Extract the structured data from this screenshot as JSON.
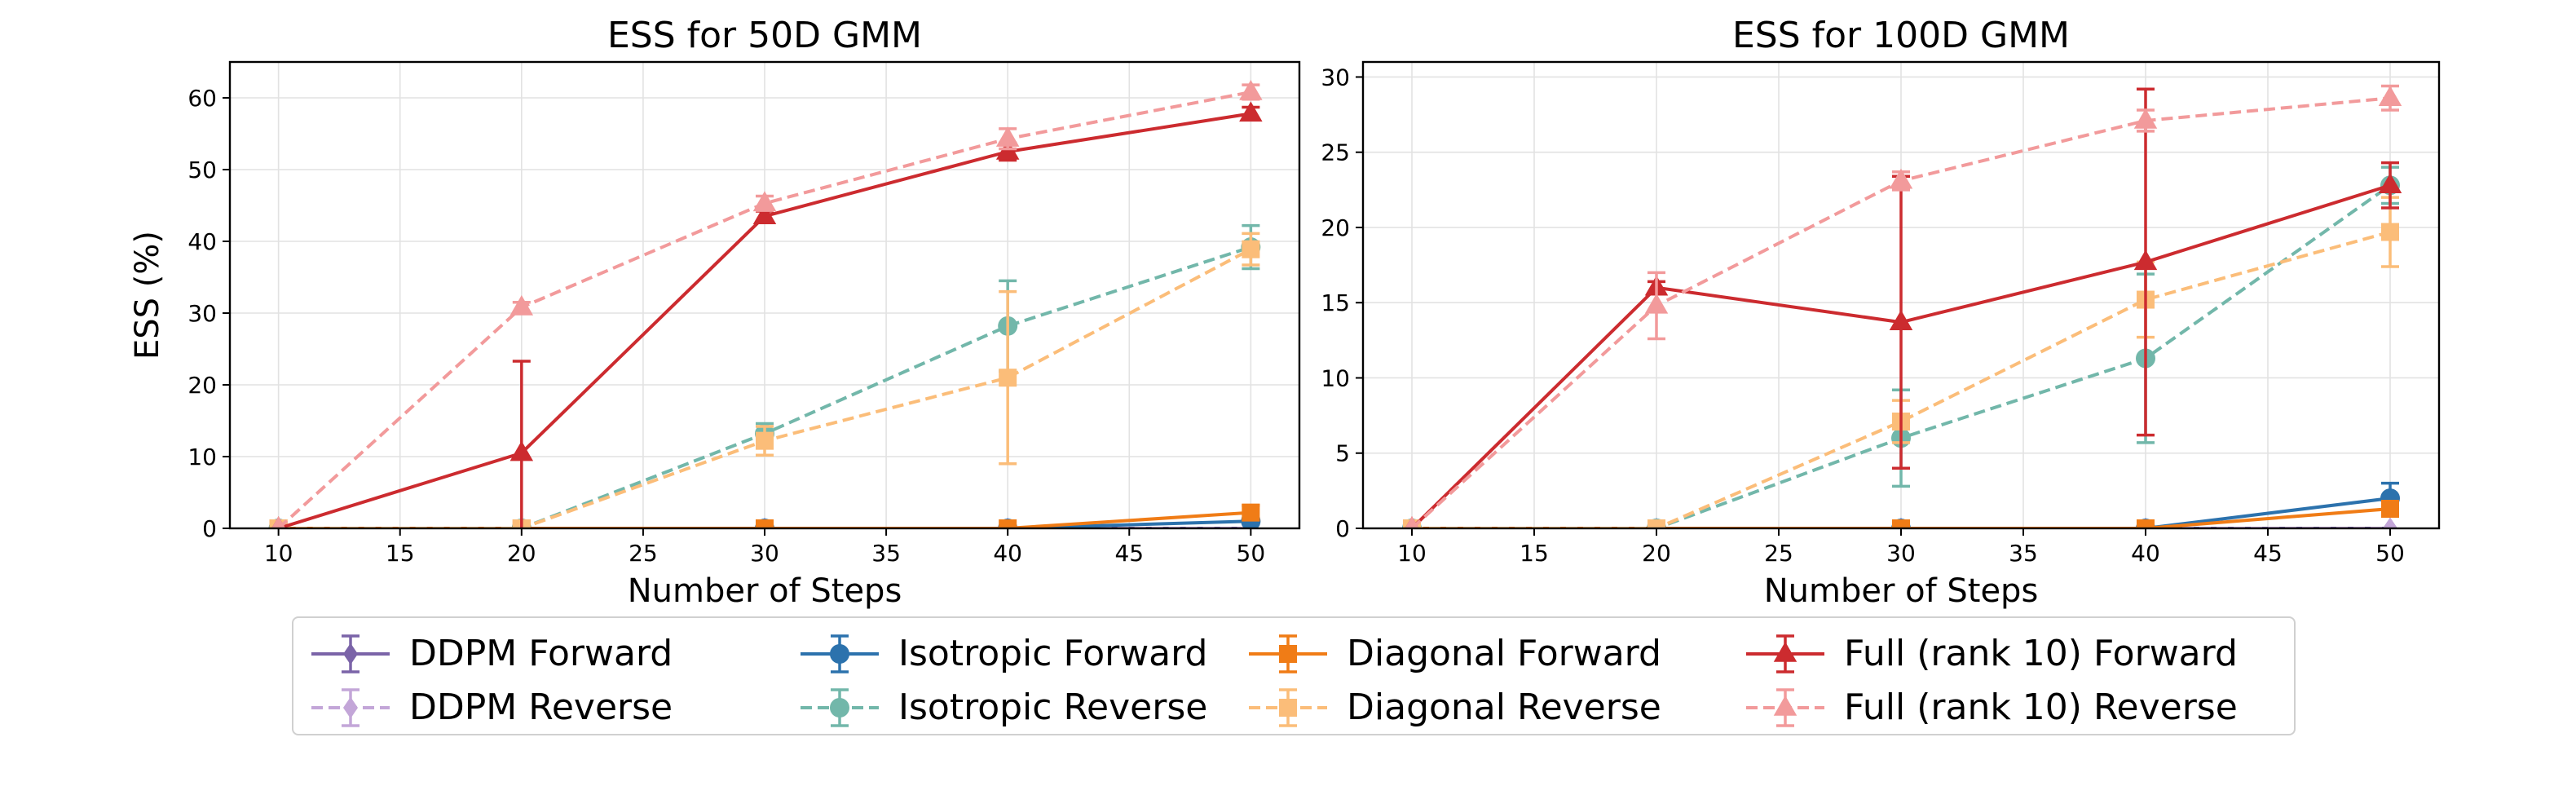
{
  "chart_data": [
    {
      "type": "line",
      "title": "ESS for 50D GMM",
      "xlabel": "Number of Steps",
      "ylabel": "ESS (%)",
      "xlim": [
        8,
        52
      ],
      "ylim": [
        0,
        65
      ],
      "xticks": [
        10,
        15,
        20,
        25,
        30,
        35,
        40,
        45,
        50
      ],
      "yticks": [
        0,
        10,
        20,
        30,
        40,
        50,
        60
      ],
      "grid": true,
      "x": [
        10,
        20,
        30,
        40,
        50
      ],
      "series": [
        {
          "name": "DDPM Forward",
          "color": "#7b64a8",
          "dash": false,
          "marker": "diamond",
          "values": [
            0,
            0,
            0,
            0,
            0
          ],
          "err": [
            0,
            0,
            0,
            0,
            0
          ]
        },
        {
          "name": "DDPM Reverse",
          "color": "#c3a6d8",
          "dash": true,
          "marker": "diamond",
          "values": [
            0,
            0,
            0,
            0,
            0
          ],
          "err": [
            0,
            0,
            0,
            0,
            0
          ]
        },
        {
          "name": "Isotropic Forward",
          "color": "#2c72ad",
          "dash": false,
          "marker": "circle",
          "values": [
            0,
            0,
            0,
            0,
            1.0
          ],
          "err": [
            0,
            0,
            0,
            0,
            0.4
          ]
        },
        {
          "name": "Isotropic Reverse",
          "color": "#72b7aa",
          "dash": true,
          "marker": "circle",
          "values": [
            0,
            0,
            13.2,
            28.2,
            39.2
          ],
          "err": [
            0,
            0,
            1.4,
            6.3,
            3.0
          ]
        },
        {
          "name": "Diagonal Forward",
          "color": "#f07c16",
          "dash": false,
          "marker": "square",
          "values": [
            0,
            0,
            0,
            0,
            2.2
          ],
          "err": [
            0,
            0,
            0,
            0,
            1.0
          ]
        },
        {
          "name": "Diagonal Reverse",
          "color": "#fbbd79",
          "dash": true,
          "marker": "square",
          "values": [
            0,
            0,
            12.2,
            21.0,
            38.9
          ],
          "err": [
            0,
            0,
            2.0,
            12.0,
            2.2
          ]
        },
        {
          "name": "Full (rank 10) Forward",
          "color": "#cc2b2f",
          "dash": false,
          "marker": "triangle",
          "values": [
            0,
            10.5,
            43.5,
            52.5,
            57.8
          ],
          "err": [
            0,
            12.8,
            0.7,
            1.2,
            0.9
          ]
        },
        {
          "name": "Full (rank 10) Reverse",
          "color": "#f29a9b",
          "dash": true,
          "marker": "triangle",
          "values": [
            0,
            30.8,
            45.3,
            54.3,
            60.8
          ],
          "err": [
            0,
            0.7,
            1.0,
            1.4,
            1.0
          ]
        }
      ]
    },
    {
      "type": "line",
      "title": "ESS for 100D GMM",
      "xlabel": "Number of Steps",
      "ylabel": "",
      "xlim": [
        8,
        52
      ],
      "ylim": [
        0,
        31
      ],
      "xticks": [
        10,
        15,
        20,
        25,
        30,
        35,
        40,
        45,
        50
      ],
      "yticks": [
        0,
        5,
        10,
        15,
        20,
        25,
        30
      ],
      "grid": true,
      "x": [
        10,
        20,
        30,
        40,
        50
      ],
      "series": [
        {
          "name": "DDPM Forward",
          "color": "#7b64a8",
          "dash": false,
          "marker": "diamond",
          "values": [
            0,
            0,
            0,
            0,
            0
          ],
          "err": [
            0,
            0,
            0,
            0,
            0
          ]
        },
        {
          "name": "DDPM Reverse",
          "color": "#c3a6d8",
          "dash": true,
          "marker": "diamond",
          "values": [
            0,
            0,
            0,
            0,
            0
          ],
          "err": [
            0,
            0,
            0,
            0,
            0
          ]
        },
        {
          "name": "Isotropic Forward",
          "color": "#2c72ad",
          "dash": false,
          "marker": "circle",
          "values": [
            0,
            0,
            0,
            0,
            2.0
          ],
          "err": [
            0,
            0,
            0,
            0,
            1.0
          ]
        },
        {
          "name": "Isotropic Reverse",
          "color": "#72b7aa",
          "dash": true,
          "marker": "circle",
          "values": [
            0,
            0,
            6.0,
            11.3,
            22.8
          ],
          "err": [
            0,
            0,
            3.2,
            5.6,
            1.2
          ]
        },
        {
          "name": "Diagonal Forward",
          "color": "#f07c16",
          "dash": false,
          "marker": "square",
          "values": [
            0,
            0,
            0,
            0,
            1.3
          ],
          "err": [
            0,
            0,
            0,
            0,
            0.5
          ]
        },
        {
          "name": "Diagonal Reverse",
          "color": "#fbbd79",
          "dash": true,
          "marker": "square",
          "values": [
            0,
            0,
            7.1,
            15.2,
            19.7
          ],
          "err": [
            0,
            0,
            1.4,
            2.5,
            2.3
          ]
        },
        {
          "name": "Full (rank 10) Forward",
          "color": "#cc2b2f",
          "dash": false,
          "marker": "triangle",
          "values": [
            0,
            16.0,
            13.7,
            17.7,
            22.8
          ],
          "err": [
            0,
            0.4,
            9.7,
            11.5,
            1.5
          ]
        },
        {
          "name": "Full (rank 10) Reverse",
          "color": "#f29a9b",
          "dash": true,
          "marker": "triangle",
          "values": [
            0,
            14.8,
            23.1,
            27.1,
            28.6
          ],
          "err": [
            0,
            2.2,
            0.6,
            0.7,
            0.8
          ]
        }
      ]
    }
  ],
  "legend": {
    "placement": "bottom-center",
    "items": [
      {
        "label": "DDPM Forward",
        "color": "#7b64a8",
        "dash": false,
        "marker": "diamond"
      },
      {
        "label": "Isotropic Forward",
        "color": "#2c72ad",
        "dash": false,
        "marker": "circle"
      },
      {
        "label": "Diagonal Forward",
        "color": "#f07c16",
        "dash": false,
        "marker": "square"
      },
      {
        "label": "Full (rank 10) Forward",
        "color": "#cc2b2f",
        "dash": false,
        "marker": "triangle"
      },
      {
        "label": "DDPM Reverse",
        "color": "#c3a6d8",
        "dash": true,
        "marker": "diamond"
      },
      {
        "label": "Isotropic Reverse",
        "color": "#72b7aa",
        "dash": true,
        "marker": "circle"
      },
      {
        "label": "Diagonal Reverse",
        "color": "#fbbd79",
        "dash": true,
        "marker": "square"
      },
      {
        "label": "Full (rank 10) Reverse",
        "color": "#f29a9b",
        "dash": true,
        "marker": "triangle"
      }
    ]
  }
}
